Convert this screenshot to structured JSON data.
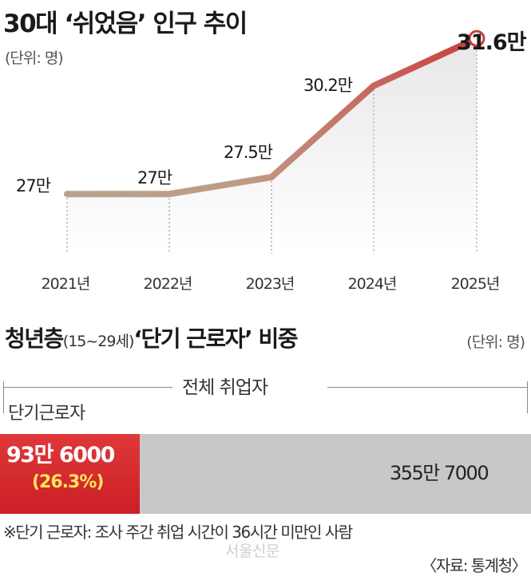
{
  "chart1": {
    "title": "30대 ‘쉬었음’ 인구 추이",
    "unit": "(단위: 명)",
    "chart_data": {
      "type": "line",
      "categories": [
        "2021년",
        "2022년",
        "2023년",
        "2024년",
        "2025년"
      ],
      "values": [
        27.0,
        27.0,
        27.5,
        30.2,
        31.6
      ],
      "value_labels": [
        "27만",
        "27만",
        "27.5만",
        "30.2만",
        "31.6만"
      ],
      "ylim": [
        25.0,
        32.5
      ],
      "grid": false
    }
  },
  "chart2": {
    "title_main": "청년층",
    "title_age": "(15~29세)",
    "title_rest": "‘단기 근로자’ 비중",
    "unit": "(단위: 명)",
    "total_label": "전체 취업자",
    "short_label": "단기근로자",
    "chart_data": {
      "type": "bar",
      "orientation": "horizontal",
      "stacked": true,
      "total": 3557000,
      "short_term": 936000,
      "short_term_share_percent": 26.3,
      "short_value_label": "93만 6000",
      "short_pct_label": "(26.3%)",
      "total_value_label": "355만 7000"
    }
  },
  "footnote": "※단기 근로자: 조사 주간 취업 시간이 36시간 미만인 사람",
  "source": "〈자료: 통계청〉",
  "watermark": "서울신문",
  "colors": {
    "line_start": "#b8a38c",
    "line_end": "#cc3d3c",
    "bar_short": "#d42a2e",
    "bar_total": "#c8c8c8",
    "pct_text": "#ffe45c"
  }
}
